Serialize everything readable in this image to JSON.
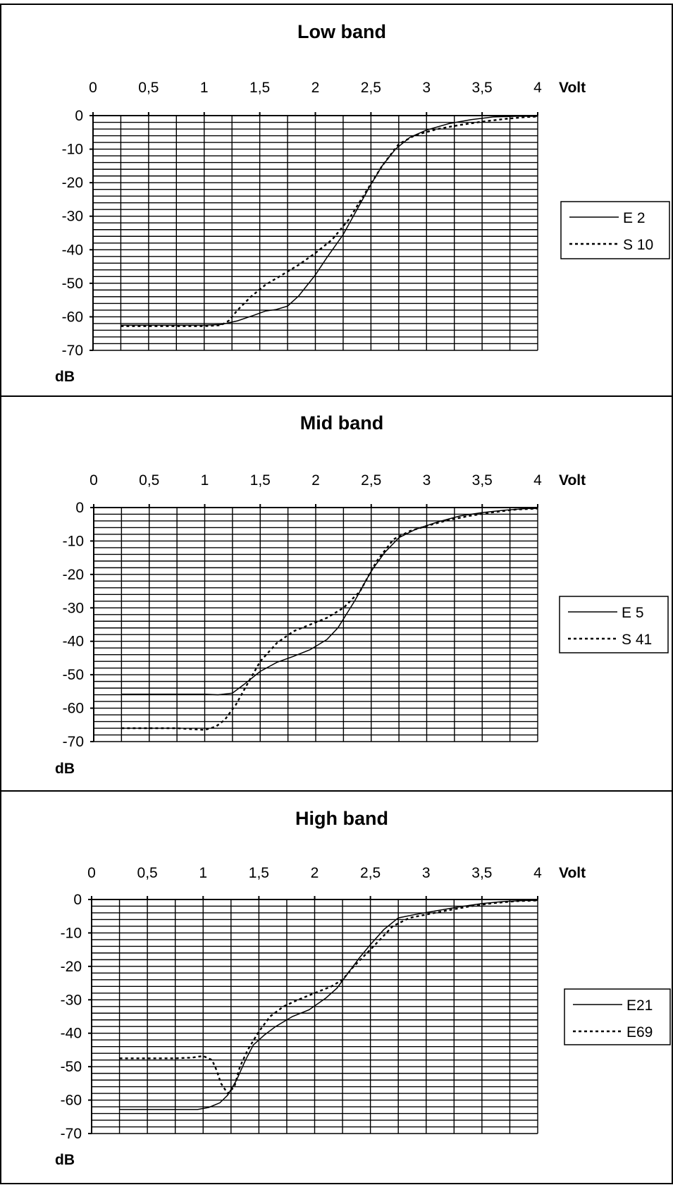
{
  "chart_data": [
    {
      "type": "line",
      "title": "Low band",
      "xlabel": "Volt",
      "ylabel": "dB",
      "xlim": [
        0,
        4
      ],
      "ylim": [
        -70,
        0
      ],
      "x_ticks": [
        "0",
        "0,5",
        "1",
        "1,5",
        "2",
        "2,5",
        "3",
        "3,5",
        "4"
      ],
      "y_ticks": [
        "0",
        "-10",
        "-20",
        "-30",
        "-40",
        "-50",
        "-60",
        "-70"
      ],
      "grid": true,
      "legend": "right",
      "series": [
        {
          "name": "E 2",
          "style": "solid",
          "points": [
            [
              0.25,
              -62.5
            ],
            [
              0.5,
              -62.5
            ],
            [
              0.75,
              -62.5
            ],
            [
              1.0,
              -62.5
            ],
            [
              1.15,
              -62.3
            ],
            [
              1.3,
              -61.2
            ],
            [
              1.45,
              -59.5
            ],
            [
              1.55,
              -58.3
            ],
            [
              1.65,
              -57.8
            ],
            [
              1.75,
              -56.8
            ],
            [
              1.85,
              -53.8
            ],
            [
              2.0,
              -47.5
            ],
            [
              2.1,
              -42.5
            ],
            [
              2.25,
              -35.5
            ],
            [
              2.35,
              -29.5
            ],
            [
              2.5,
              -20.5
            ],
            [
              2.6,
              -15
            ],
            [
              2.72,
              -10
            ],
            [
              2.85,
              -6.5
            ],
            [
              3.0,
              -4.3
            ],
            [
              3.2,
              -2.4
            ],
            [
              3.4,
              -1.2
            ],
            [
              3.6,
              -0.4
            ],
            [
              3.8,
              -0.2
            ],
            [
              4.0,
              -0.2
            ]
          ]
        },
        {
          "name": "S 10",
          "style": "dashed",
          "points": [
            [
              0.25,
              -62.8
            ],
            [
              0.5,
              -62.8
            ],
            [
              0.75,
              -62.8
            ],
            [
              1.0,
              -62.8
            ],
            [
              1.15,
              -62.5
            ],
            [
              1.22,
              -61.2
            ],
            [
              1.3,
              -58
            ],
            [
              1.42,
              -54
            ],
            [
              1.55,
              -50.5
            ],
            [
              1.7,
              -47.5
            ],
            [
              1.85,
              -44.5
            ],
            [
              2.0,
              -41
            ],
            [
              2.15,
              -37
            ],
            [
              2.3,
              -31
            ],
            [
              2.45,
              -23
            ],
            [
              2.6,
              -15
            ],
            [
              2.75,
              -8.5
            ],
            [
              2.9,
              -5.8
            ],
            [
              3.1,
              -4
            ],
            [
              3.3,
              -2.8
            ],
            [
              3.5,
              -1.8
            ],
            [
              3.7,
              -1.0
            ],
            [
              3.9,
              -0.4
            ],
            [
              4.0,
              -0.3
            ]
          ]
        }
      ]
    },
    {
      "type": "line",
      "title": "Mid band",
      "xlabel": "Volt",
      "ylabel": "dB",
      "xlim": [
        0,
        4
      ],
      "ylim": [
        -70,
        0
      ],
      "x_ticks": [
        "0",
        "0,5",
        "1",
        "1,5",
        "2",
        "2,5",
        "3",
        "3,5",
        "4"
      ],
      "y_ticks": [
        "0",
        "-10",
        "-20",
        "-30",
        "-40",
        "-50",
        "-60",
        "-70"
      ],
      "grid": true,
      "legend": "right",
      "series": [
        {
          "name": "E 5",
          "style": "solid",
          "points": [
            [
              0.25,
              -55.8
            ],
            [
              0.5,
              -55.8
            ],
            [
              0.75,
              -55.8
            ],
            [
              1.0,
              -55.8
            ],
            [
              1.12,
              -56
            ],
            [
              1.25,
              -55.5
            ],
            [
              1.35,
              -53
            ],
            [
              1.5,
              -49
            ],
            [
              1.65,
              -46.3
            ],
            [
              1.8,
              -44.5
            ],
            [
              1.95,
              -42.5
            ],
            [
              2.1,
              -39.5
            ],
            [
              2.2,
              -36
            ],
            [
              2.35,
              -28
            ],
            [
              2.5,
              -19
            ],
            [
              2.62,
              -13.5
            ],
            [
              2.75,
              -9
            ],
            [
              2.9,
              -6.5
            ],
            [
              3.1,
              -4.3
            ],
            [
              3.3,
              -2.5
            ],
            [
              3.5,
              -1.5
            ],
            [
              3.7,
              -0.8
            ],
            [
              3.9,
              -0.3
            ],
            [
              4.0,
              -0.3
            ]
          ]
        },
        {
          "name": "S 41",
          "style": "dashed",
          "points": [
            [
              0.25,
              -66
            ],
            [
              0.5,
              -66
            ],
            [
              0.75,
              -66
            ],
            [
              0.9,
              -66.3
            ],
            [
              1.0,
              -66.5
            ],
            [
              1.1,
              -65.5
            ],
            [
              1.18,
              -63.5
            ],
            [
              1.28,
              -59
            ],
            [
              1.38,
              -53
            ],
            [
              1.5,
              -46
            ],
            [
              1.65,
              -40.5
            ],
            [
              1.8,
              -37
            ],
            [
              1.95,
              -35
            ],
            [
              2.1,
              -33
            ],
            [
              2.25,
              -30
            ],
            [
              2.4,
              -25
            ],
            [
              2.55,
              -16
            ],
            [
              2.7,
              -9.5
            ],
            [
              2.85,
              -7
            ],
            [
              3.0,
              -5.5
            ],
            [
              3.2,
              -3.7
            ],
            [
              3.4,
              -2.4
            ],
            [
              3.6,
              -1.4
            ],
            [
              3.8,
              -0.6
            ],
            [
              4.0,
              -0.3
            ]
          ]
        }
      ]
    },
    {
      "type": "line",
      "title": "High band",
      "xlabel": "Volt",
      "ylabel": "dB",
      "xlim": [
        0,
        4
      ],
      "ylim": [
        -70,
        0
      ],
      "x_ticks": [
        "0",
        "0,5",
        "1",
        "1,5",
        "2",
        "2,5",
        "3",
        "3,5",
        "4"
      ],
      "y_ticks": [
        "0",
        "-10",
        "-20",
        "-30",
        "-40",
        "-50",
        "-60",
        "-70"
      ],
      "grid": true,
      "legend": "right",
      "series": [
        {
          "name": "E21",
          "style": "solid",
          "points": [
            [
              0.25,
              -62.8
            ],
            [
              0.5,
              -62.8
            ],
            [
              0.75,
              -62.8
            ],
            [
              0.95,
              -62.8
            ],
            [
              1.05,
              -62.2
            ],
            [
              1.15,
              -60.8
            ],
            [
              1.22,
              -58.5
            ],
            [
              1.3,
              -54
            ],
            [
              1.38,
              -48
            ],
            [
              1.45,
              -43.5
            ],
            [
              1.55,
              -40.5
            ],
            [
              1.65,
              -38
            ],
            [
              1.8,
              -35
            ],
            [
              1.95,
              -33
            ],
            [
              2.1,
              -29.5
            ],
            [
              2.2,
              -26.5
            ],
            [
              2.3,
              -22
            ],
            [
              2.4,
              -17.5
            ],
            [
              2.5,
              -13.5
            ],
            [
              2.62,
              -9
            ],
            [
              2.75,
              -5.5
            ],
            [
              2.9,
              -4.5
            ],
            [
              3.1,
              -3.3
            ],
            [
              3.3,
              -2.2
            ],
            [
              3.5,
              -1.2
            ],
            [
              3.7,
              -0.6
            ],
            [
              3.9,
              -0.3
            ],
            [
              4.0,
              -0.3
            ]
          ]
        },
        {
          "name": "E69",
          "style": "dashed",
          "points": [
            [
              0.25,
              -47.5
            ],
            [
              0.5,
              -47.5
            ],
            [
              0.75,
              -47.5
            ],
            [
              0.9,
              -47.3
            ],
            [
              1.0,
              -46.8
            ],
            [
              1.08,
              -48
            ],
            [
              1.12,
              -51
            ],
            [
              1.16,
              -55
            ],
            [
              1.22,
              -58
            ],
            [
              1.28,
              -56
            ],
            [
              1.33,
              -50
            ],
            [
              1.4,
              -45
            ],
            [
              1.5,
              -39.5
            ],
            [
              1.6,
              -35
            ],
            [
              1.72,
              -32
            ],
            [
              1.85,
              -30
            ],
            [
              2.0,
              -28
            ],
            [
              2.15,
              -26
            ],
            [
              2.25,
              -24
            ],
            [
              2.35,
              -20
            ],
            [
              2.5,
              -15
            ],
            [
              2.6,
              -11.5
            ],
            [
              2.7,
              -8
            ],
            [
              2.85,
              -5.5
            ],
            [
              3.0,
              -4.5
            ],
            [
              3.2,
              -3.2
            ],
            [
              3.4,
              -2
            ],
            [
              3.6,
              -1.1
            ],
            [
              3.8,
              -0.5
            ],
            [
              4.0,
              -0.3
            ]
          ]
        }
      ]
    }
  ]
}
